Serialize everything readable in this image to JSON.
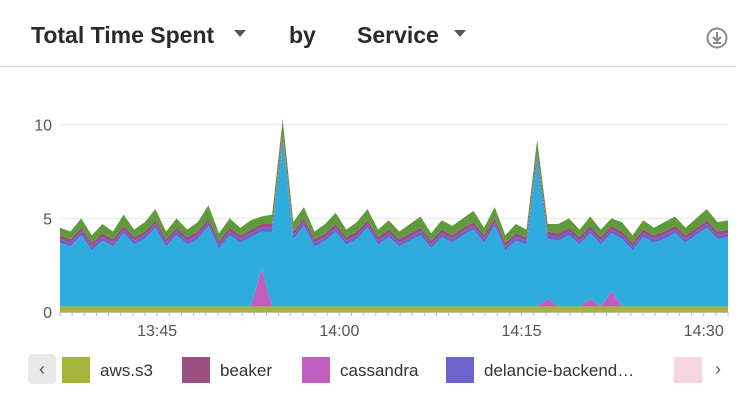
{
  "header": {
    "metric_label": "Total Time Spent",
    "by_label": "by",
    "group_label": "Service",
    "icons": {
      "metric_dropdown": "caret-down-icon",
      "group_dropdown": "caret-down-icon",
      "download": "download-icon"
    }
  },
  "legend": {
    "items": [
      {
        "label": "aws.s3",
        "color": "#a5b43a"
      },
      {
        "label": "beaker",
        "color": "#9a4f80"
      },
      {
        "label": "cassandra",
        "color": "#c25ec0"
      },
      {
        "label": "delancie-backend…",
        "color": "#6c63cc"
      },
      {
        "label": "",
        "color": "#f5d7e0"
      }
    ],
    "icons": {
      "prev": "chevron-left-icon",
      "next": "chevron-right-icon"
    },
    "prev_glyph": "‹",
    "next_glyph": "›"
  },
  "chart_data": {
    "type": "area",
    "stacked": true,
    "title": "",
    "xlabel": "",
    "ylabel": "",
    "x_ticks": [
      "13:45",
      "14:00",
      "14:15",
      "14:30"
    ],
    "y_ticks": [
      "0",
      "5",
      "10"
    ],
    "ylim": [
      0,
      11
    ],
    "grid": "horizontal",
    "series": [
      {
        "name": "aws.s3",
        "color": "#a5b43a",
        "values": [
          0.3,
          0.3,
          0.3,
          0.3,
          0.3,
          0.3,
          0.3,
          0.3,
          0.3,
          0.3,
          0.3,
          0.3,
          0.3,
          0.3,
          0.3,
          0.3,
          0.3,
          0.3,
          0.3,
          0.3,
          0.3,
          0.3,
          0.3,
          0.3,
          0.3,
          0.3,
          0.3,
          0.3,
          0.3,
          0.3,
          0.3,
          0.3,
          0.3,
          0.3,
          0.3,
          0.3,
          0.3,
          0.3,
          0.3,
          0.3,
          0.3,
          0.3,
          0.3,
          0.3,
          0.3,
          0.3,
          0.3,
          0.3,
          0.3,
          0.3,
          0.3,
          0.3,
          0.3,
          0.3,
          0.3,
          0.3,
          0.3,
          0.3,
          0.3,
          0.3,
          0.3,
          0.3,
          0.3,
          0.3
        ]
      },
      {
        "name": "cassandra",
        "color": "#c25ec0",
        "values": [
          0,
          0,
          0,
          0,
          0,
          0,
          0,
          0,
          0,
          0,
          0,
          0,
          0,
          0,
          0,
          0,
          0,
          0,
          0,
          2.0,
          0,
          0,
          0,
          0,
          0,
          0,
          0,
          0,
          0,
          0,
          0,
          0,
          0,
          0,
          0,
          0,
          0,
          0,
          0,
          0,
          0,
          0,
          0,
          0,
          0,
          0,
          0.4,
          0,
          0,
          0,
          0.4,
          0,
          0.8,
          0,
          0,
          0,
          0,
          0,
          0,
          0,
          0,
          0,
          0,
          0
        ]
      },
      {
        "name": "",
        "color": "#2eacdc",
        "values": [
          3.4,
          3.2,
          3.8,
          3.0,
          3.5,
          3.2,
          3.9,
          3.3,
          3.6,
          4.2,
          3.2,
          3.8,
          3.3,
          3.6,
          4.3,
          3.1,
          3.8,
          3.4,
          3.7,
          2.0,
          4.0,
          8.8,
          3.6,
          4.3,
          3.2,
          3.5,
          4.0,
          3.3,
          3.6,
          4.2,
          3.3,
          3.7,
          3.2,
          3.5,
          3.8,
          3.1,
          3.7,
          3.4,
          3.8,
          4.1,
          3.4,
          4.3,
          3.0,
          3.5,
          3.3,
          7.8,
          3.2,
          3.5,
          3.8,
          3.3,
          3.5,
          3.3,
          3.1,
          3.6,
          3.0,
          3.7,
          3.4,
          3.6,
          3.9,
          3.4,
          3.8,
          4.2,
          3.6,
          3.7
        ]
      },
      {
        "name": "delancie-backend…",
        "color": "#6c63cc",
        "values": [
          0.2,
          0.2,
          0.2,
          0.2,
          0.2,
          0.2,
          0.2,
          0.2,
          0.2,
          0.2,
          0.2,
          0.2,
          0.2,
          0.2,
          0.2,
          0.2,
          0.2,
          0.2,
          0.2,
          0.2,
          0.2,
          0.2,
          0.2,
          0.2,
          0.2,
          0.2,
          0.2,
          0.2,
          0.2,
          0.2,
          0.2,
          0.2,
          0.2,
          0.2,
          0.2,
          0.2,
          0.2,
          0.2,
          0.2,
          0.2,
          0.2,
          0.2,
          0.2,
          0.2,
          0.2,
          0.2,
          0.2,
          0.2,
          0.2,
          0.2,
          0.2,
          0.2,
          0.2,
          0.2,
          0.2,
          0.2,
          0.2,
          0.2,
          0.2,
          0.2,
          0.2,
          0.2,
          0.2,
          0.2
        ]
      },
      {
        "name": "beaker",
        "color": "#9a4f80",
        "values": [
          0.2,
          0.2,
          0.2,
          0.2,
          0.2,
          0.2,
          0.2,
          0.2,
          0.2,
          0.2,
          0.2,
          0.2,
          0.2,
          0.2,
          0.2,
          0.2,
          0.2,
          0.2,
          0.2,
          0.2,
          0.2,
          0.2,
          0.2,
          0.2,
          0.2,
          0.2,
          0.2,
          0.2,
          0.2,
          0.2,
          0.2,
          0.2,
          0.2,
          0.2,
          0.2,
          0.2,
          0.2,
          0.2,
          0.2,
          0.2,
          0.2,
          0.2,
          0.2,
          0.2,
          0.2,
          0.2,
          0.2,
          0.2,
          0.2,
          0.2,
          0.2,
          0.2,
          0.2,
          0.2,
          0.2,
          0.2,
          0.2,
          0.2,
          0.2,
          0.2,
          0.2,
          0.2,
          0.2,
          0.2
        ]
      },
      {
        "name": "",
        "color": "#5f9b3c",
        "values": [
          0.4,
          0.4,
          0.5,
          0.4,
          0.5,
          0.4,
          0.6,
          0.4,
          0.5,
          0.6,
          0.4,
          0.5,
          0.4,
          0.5,
          0.7,
          0.4,
          0.5,
          0.4,
          0.5,
          0.4,
          0.5,
          0.8,
          0.5,
          0.6,
          0.4,
          0.5,
          0.6,
          0.4,
          0.5,
          0.6,
          0.4,
          0.5,
          0.4,
          0.5,
          0.6,
          0.4,
          0.5,
          0.5,
          0.5,
          0.6,
          0.4,
          0.6,
          0.4,
          0.5,
          0.4,
          0.7,
          0.4,
          0.5,
          0.5,
          0.4,
          0.5,
          0.4,
          0.4,
          0.5,
          0.4,
          0.5,
          0.4,
          0.5,
          0.5,
          0.4,
          0.5,
          0.6,
          0.5,
          0.5
        ]
      }
    ]
  }
}
